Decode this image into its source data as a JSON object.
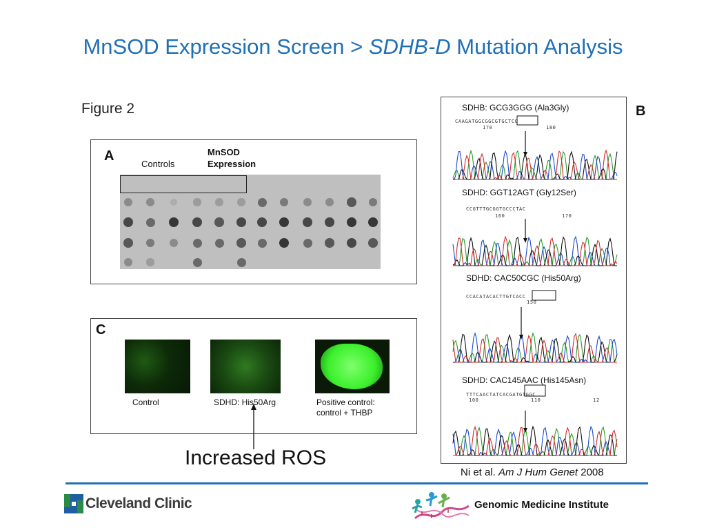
{
  "slide": {
    "title_pre": "MnSOD Expression Screen > ",
    "title_italic": "SDHB-D",
    "title_post": " Mutation Analysis",
    "figure_label": "Figure 2"
  },
  "panel_a": {
    "label": "A",
    "controls_label": "Controls",
    "mnsod_label_1": "MnSOD",
    "mnsod_label_2": "Expression"
  },
  "panel_c": {
    "label": "C",
    "images": [
      {
        "label_1": "Control",
        "label_2": ""
      },
      {
        "label_1": "SDHD: His50Arg",
        "label_2": ""
      },
      {
        "label_1": "Positive control:",
        "label_2": "control + THBP"
      }
    ]
  },
  "panel_b": {
    "label": "B",
    "traces": [
      {
        "title": "SDHB: GCG3GGG (Ala3Gly)",
        "seq": "CAAGATGGCGGCGTGCTCG",
        "n1": "170",
        "n2": "180"
      },
      {
        "title": "SDHD: GGT12AGT (Gly12Ser)",
        "seq": "CCGTTTGCGGTGCCCTAC",
        "n1": "160",
        "n2": "170"
      },
      {
        "title": "SDHD: CAC50CGC (His50Arg)",
        "seq": "CCACATACACTTGTCACC",
        "n1": "150",
        "n2": ""
      },
      {
        "title": "SDHD: CAC145AAC (His145Asn)",
        "seq": "TTTCAACTATCACGATGTGGC",
        "n1": "100",
        "n2": "110",
        "n3": "12"
      }
    ]
  },
  "annotation": {
    "increased_ros": "Increased ROS"
  },
  "citation": {
    "pre": "Ni et al. ",
    "journal": "Am J Hum Genet",
    "year": " 2008"
  },
  "footer": {
    "left_logo_text": "Cleveland Clinic",
    "right_logo_text": "Genomic Medicine Institute"
  },
  "colors": {
    "title": "#1f6fb6",
    "rule": "#1f6fb6",
    "cc_green": "#2a8a48",
    "cc_blue": "#1f5ea0"
  }
}
